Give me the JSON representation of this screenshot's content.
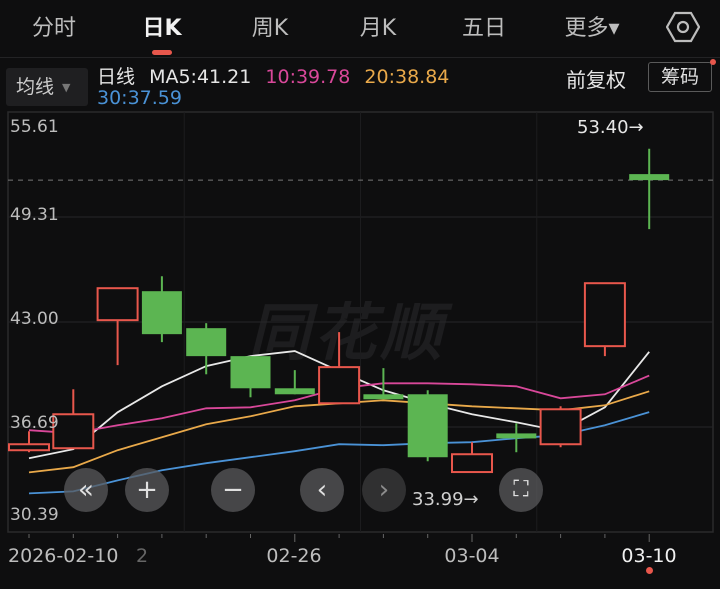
{
  "tabs": [
    {
      "label": "分时",
      "active": false
    },
    {
      "label": "日K",
      "active": true
    },
    {
      "label": "周K",
      "active": false
    },
    {
      "label": "月K",
      "active": false
    },
    {
      "label": "五日",
      "active": false
    },
    {
      "label": "更多▾",
      "active": false
    }
  ],
  "settings_icon": "hexagon-gear-icon",
  "indicator_button": {
    "label": "均线",
    "caret": "▼"
  },
  "ma_legend": {
    "prefix": "日线",
    "ma5": "MA5:41.21",
    "ma10": "10:39.78",
    "ma20": "20:38.84",
    "ma30": "30:37.59"
  },
  "adjust_label": "前复权",
  "chip_button": "筹码",
  "watermark": "同花顺",
  "colors": {
    "up": "#e8574c",
    "down": "#5cb552",
    "ma5": "#e8e8e8",
    "ma10": "#d9489a",
    "ma20": "#e9a94a",
    "ma30": "#4a92d6"
  },
  "overlay_buttons": [
    {
      "name": "scroll-left-fast",
      "icon": "«"
    },
    {
      "name": "zoom-in",
      "icon": "+"
    },
    {
      "name": "zoom-out",
      "icon": "−"
    },
    {
      "name": "scroll-left",
      "icon": "‹"
    },
    {
      "name": "scroll-right",
      "icon": "›"
    },
    {
      "name": "fullscreen",
      "icon": "⛶"
    }
  ],
  "chart_data": {
    "type": "candlestick",
    "y_ticks": [
      "55.61",
      "49.31",
      "43.00",
      "36.69",
      "30.39"
    ],
    "ylim": [
      30.39,
      55.61
    ],
    "x_labels": [
      "2026-02-10",
      "2",
      "02-26",
      "03-04",
      "03-10"
    ],
    "max_label": "53.40→",
    "min_label": "33.99→",
    "last_price": 51.52,
    "candles": [
      {
        "o": 35.3,
        "h": 36.44,
        "l": 35.18,
        "c": 35.66
      },
      {
        "o": 35.42,
        "h": 38.96,
        "l": 35.42,
        "c": 37.46
      },
      {
        "o": 43.11,
        "h": 45.03,
        "l": 40.41,
        "c": 45.03
      },
      {
        "o": 44.85,
        "h": 45.75,
        "l": 41.79,
        "c": 42.27
      },
      {
        "o": 42.63,
        "h": 42.93,
        "l": 39.86,
        "c": 40.95
      },
      {
        "o": 40.95,
        "h": 40.95,
        "l": 38.48,
        "c": 39.02
      },
      {
        "o": 39.02,
        "h": 40.11,
        "l": 38.66,
        "c": 38.66
      },
      {
        "o": 38.12,
        "h": 42.39,
        "l": 38.12,
        "c": 40.29
      },
      {
        "o": 38.66,
        "h": 40.23,
        "l": 38.36,
        "c": 38.36
      },
      {
        "o": 38.66,
        "h": 38.9,
        "l": 34.64,
        "c": 34.88
      },
      {
        "o": 33.99,
        "h": 35.78,
        "l": 33.99,
        "c": 35.06
      },
      {
        "o": 36.31,
        "h": 36.92,
        "l": 35.18,
        "c": 36.14
      },
      {
        "o": 35.66,
        "h": 37.94,
        "l": 35.48,
        "c": 37.76
      },
      {
        "o": 41.55,
        "h": 45.33,
        "l": 40.95,
        "c": 45.33
      },
      {
        "o": 51.88,
        "h": 53.4,
        "l": 48.58,
        "c": 51.52
      }
    ],
    "series": [
      {
        "name": "MA5",
        "values": [
          34.82,
          35.36,
          37.58,
          39.14,
          40.35,
          40.95,
          41.25,
          40.05,
          38.9,
          38.12,
          37.46,
          36.98,
          36.44,
          37.88,
          41.21
        ]
      },
      {
        "name": "MA10",
        "values": [
          36.5,
          36.32,
          36.8,
          37.22,
          37.82,
          37.88,
          38.3,
          39.02,
          39.32,
          39.32,
          39.26,
          39.14,
          38.42,
          38.66,
          39.78
        ]
      },
      {
        "name": "MA20",
        "values": [
          33.97,
          34.28,
          35.3,
          36.08,
          36.86,
          37.34,
          37.94,
          38.12,
          38.3,
          38.12,
          37.94,
          37.82,
          37.7,
          38.0,
          38.84
        ]
      },
      {
        "name": "MA30",
        "values": [
          32.71,
          32.83,
          33.49,
          34.1,
          34.52,
          34.88,
          35.24,
          35.66,
          35.6,
          35.72,
          35.78,
          36.02,
          36.2,
          36.8,
          37.59
        ]
      }
    ]
  }
}
